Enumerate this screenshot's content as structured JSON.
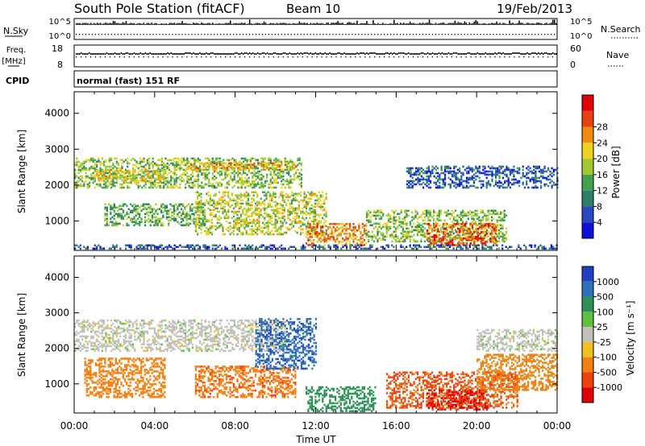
{
  "header": {
    "station": "South Pole Station (fitACF)",
    "beam": "Beam 10",
    "date": "19/Feb/2013"
  },
  "status": {
    "nsky_label": "N.Sky",
    "nsky_ticks": [
      "10^5",
      "10^0"
    ],
    "nsearch_label": "N.Search",
    "nsearch_ticks": [
      "10^5",
      "10^0"
    ],
    "freq_label_top": "Freq.",
    "freq_label_unit": "[MHz]",
    "freq_ticks": [
      "18",
      "8"
    ],
    "nave_label": "Nave",
    "nave_ticks": [
      "60",
      "0"
    ],
    "cpid_label": "CPID",
    "cpid_text": "normal (fast) 151 RF"
  },
  "colors": {
    "power_scale": [
      "#1010d8",
      "#2848c0",
      "#2e7f6a",
      "#43a04e",
      "#a0c830",
      "#f0d020",
      "#f08a10",
      "#e84010",
      "#e00000"
    ],
    "velocity_scale": [
      "#2040c0",
      "#3070b8",
      "#2c8f58",
      "#60c040",
      "#c0c0b8",
      "#f0c020",
      "#f08010",
      "#f04010",
      "#e00000"
    ]
  },
  "chart_data": [
    {
      "type": "heatmap",
      "name": "power",
      "xlabel": "Time UT",
      "ylabel": "Slant Range [km]",
      "x_ticks": [
        "00:00",
        "04:00",
        "08:00",
        "12:00",
        "16:00",
        "20:00",
        "00:00"
      ],
      "x_range_hours": [
        0,
        24
      ],
      "ylim": [
        180,
        4600
      ],
      "y_ticks": [
        1000,
        2000,
        3000,
        4000
      ],
      "colorbar_label": "Power [dB]",
      "colorbar_ticks": [
        "4",
        "8",
        "12",
        "16",
        "20",
        "24",
        "28"
      ],
      "colorbar_range": [
        0,
        30
      ],
      "bands": [
        {
          "t": [
            0.0,
            11.3
          ],
          "r": [
            1900,
            2750
          ],
          "v": 14
        },
        {
          "t": [
            5.5,
            11.0
          ],
          "r": [
            2400,
            2600
          ],
          "v": 20
        },
        {
          "t": [
            1.0,
            4.5
          ],
          "r": [
            2100,
            2400
          ],
          "v": 18
        },
        {
          "t": [
            1.5,
            6.5
          ],
          "r": [
            850,
            1450
          ],
          "v": 12
        },
        {
          "t": [
            6.0,
            12.5
          ],
          "r": [
            600,
            1800
          ],
          "v": 16
        },
        {
          "t": [
            11.5,
            14.5
          ],
          "r": [
            300,
            900
          ],
          "v": 22
        },
        {
          "t": [
            14.5,
            21.5
          ],
          "r": [
            400,
            1300
          ],
          "v": 14
        },
        {
          "t": [
            17.5,
            21.0
          ],
          "r": [
            300,
            900
          ],
          "v": 24
        },
        {
          "t": [
            16.5,
            24.0
          ],
          "r": [
            1900,
            2500
          ],
          "v": 6
        },
        {
          "t": [
            0.0,
            24.0
          ],
          "r": [
            200,
            300
          ],
          "v": 6
        }
      ]
    },
    {
      "type": "heatmap",
      "name": "velocity",
      "xlabel": "Time UT",
      "ylabel": "Slant Range [km]",
      "x_ticks": [
        "00:00",
        "04:00",
        "08:00",
        "12:00",
        "16:00",
        "20:00",
        "00:00"
      ],
      "x_range_hours": [
        0,
        24
      ],
      "ylim": [
        180,
        4600
      ],
      "y_ticks": [
        1000,
        2000,
        3000,
        4000
      ],
      "colorbar_label": "Velocity [m s⁻¹]",
      "colorbar_ticks": [
        "1000",
        "500",
        "100",
        "25",
        "-25",
        "-100",
        "-500",
        "-1000"
      ],
      "bands": [
        {
          "t": [
            0.0,
            10.5
          ],
          "r": [
            1900,
            2800
          ],
          "v": 0
        },
        {
          "t": [
            20.0,
            24.0
          ],
          "r": [
            1900,
            2500
          ],
          "v": 0
        },
        {
          "t": [
            0.5,
            4.5
          ],
          "r": [
            600,
            1700
          ],
          "v": -150
        },
        {
          "t": [
            6.0,
            11.0
          ],
          "r": [
            600,
            1500
          ],
          "v": -200
        },
        {
          "t": [
            9.0,
            12.0
          ],
          "r": [
            1400,
            2800
          ],
          "v": 400
        },
        {
          "t": [
            11.5,
            15.0
          ],
          "r": [
            200,
            900
          ],
          "v": 120
        },
        {
          "t": [
            15.5,
            22.0
          ],
          "r": [
            300,
            1300
          ],
          "v": -300
        },
        {
          "t": [
            17.5,
            20.5
          ],
          "r": [
            250,
            800
          ],
          "v": -600
        },
        {
          "t": [
            20.0,
            24.0
          ],
          "r": [
            800,
            1800
          ],
          "v": -150
        }
      ]
    }
  ]
}
